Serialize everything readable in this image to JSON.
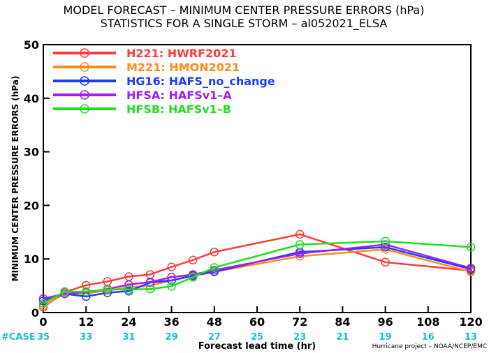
{
  "chart_data": {
    "type": "line",
    "title": "MODEL FORECAST – MINIMUM CENTER PRESSURE ERRORS (hPa)",
    "subtitle": "STATISTICS FOR A SINGLE STORM – al052021_ELSA",
    "xlabel": "Forecast lead time (hr)",
    "ylabel": "MINIMUM CENTER PRESSURE ERRORS (hPa)",
    "xlim": [
      0,
      120
    ],
    "ylim": [
      0,
      50
    ],
    "x_ticks": [
      0,
      12,
      24,
      36,
      48,
      60,
      72,
      84,
      96,
      108,
      120
    ],
    "y_ticks": [
      0,
      10,
      20,
      30,
      40,
      50
    ],
    "grid": false,
    "legend_position": "top-left",
    "case_label": "#CASE",
    "case_counts": [
      "35",
      "33",
      "31",
      "29",
      "27",
      "25",
      "23",
      "21",
      "19",
      "16",
      "13"
    ],
    "credit": "Hurricane project – NOAA/NCEP/EMC",
    "series": [
      {
        "name": "H221: HWRF2021",
        "color": "#ff3b3b",
        "x": [
          0,
          6,
          12,
          18,
          24,
          30,
          36,
          42,
          48,
          72,
          96,
          120
        ],
        "y": [
          1.0,
          3.8,
          5.1,
          5.8,
          6.7,
          7.1,
          8.5,
          9.8,
          11.3,
          14.6,
          9.4,
          7.8
        ]
      },
      {
        "name": "M221: HMON2021",
        "color": "#ff8c1a",
        "x": [
          0,
          6,
          12,
          18,
          24,
          30,
          36,
          42,
          48,
          72,
          96,
          120
        ],
        "y": [
          1.3,
          3.5,
          3.6,
          4.1,
          4.7,
          5.0,
          6.0,
          6.8,
          7.6,
          10.5,
          11.8,
          7.6
        ]
      },
      {
        "name": "HG16: HAFS_no_change",
        "color": "#1a3cff",
        "x": [
          0,
          6,
          12,
          18,
          24,
          30,
          36,
          42,
          48,
          72,
          96,
          120
        ],
        "y": [
          2.2,
          3.5,
          3.0,
          3.7,
          4.0,
          5.6,
          6.0,
          6.9,
          7.6,
          11.3,
          12.2,
          8.1
        ]
      },
      {
        "name": "HFSA: HAFSv1–A",
        "color": "#a020f0",
        "x": [
          0,
          6,
          12,
          18,
          24,
          30,
          36,
          42,
          48,
          72,
          96,
          120
        ],
        "y": [
          2.6,
          3.5,
          3.8,
          4.4,
          5.2,
          5.7,
          6.6,
          7.1,
          7.9,
          11.0,
          12.7,
          8.3
        ]
      },
      {
        "name": "HFSB: HAFSv1–B",
        "color": "#22dd22",
        "x": [
          0,
          6,
          12,
          18,
          24,
          30,
          36,
          42,
          48,
          72,
          96,
          120
        ],
        "y": [
          1.7,
          3.9,
          3.9,
          4.3,
          4.3,
          4.4,
          4.9,
          6.6,
          8.4,
          12.7,
          13.3,
          12.2
        ]
      }
    ]
  }
}
